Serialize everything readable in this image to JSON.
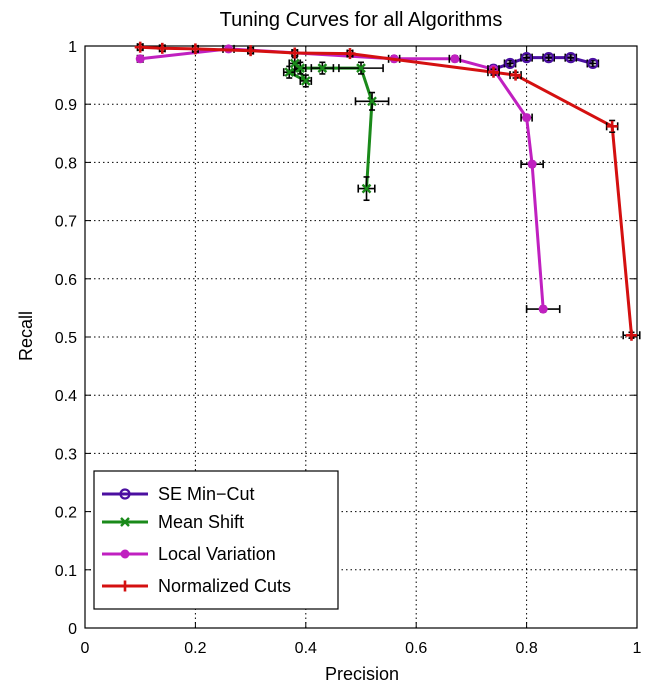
{
  "chart_data": {
    "type": "line",
    "title": "Tuning Curves for all Algorithms",
    "xlabel": "Precision",
    "ylabel": "Recall",
    "xlim": [
      0,
      1
    ],
    "ylim": [
      0,
      1
    ],
    "xticks": [
      "0",
      "0.2",
      "0.4",
      "0.6",
      "0.8",
      "1"
    ],
    "yticks": [
      "0",
      "0.1",
      "0.2",
      "0.3",
      "0.4",
      "0.5",
      "0.6",
      "0.7",
      "0.8",
      "0.9",
      "1"
    ],
    "grid": true,
    "legend_position": "bottom-left",
    "series": [
      {
        "name": "SE Min−Cut",
        "color": "#4b0fa0",
        "marker": "circle-open",
        "x": [
          0.74,
          0.77,
          0.8,
          0.84,
          0.88,
          0.92
        ],
        "y": [
          0.96,
          0.97,
          0.98,
          0.98,
          0.98,
          0.97
        ],
        "xerr": [
          0.01,
          0.01,
          0.01,
          0.01,
          0.01,
          0.01
        ],
        "yerr": [
          0.005,
          0.005,
          0.005,
          0.005,
          0.005,
          0.005
        ]
      },
      {
        "name": "Mean Shift",
        "color": "#1a8a1a",
        "marker": "x",
        "x": [
          0.51,
          0.52,
          0.5,
          0.43,
          0.39,
          0.37,
          0.4,
          0.38
        ],
        "y": [
          0.755,
          0.905,
          0.962,
          0.962,
          0.962,
          0.955,
          0.94,
          0.97
        ],
        "xerr": [
          0.015,
          0.03,
          0.04,
          0.02,
          0.01,
          0.01,
          0.01,
          0.01
        ],
        "yerr": [
          0.02,
          0.015,
          0.01,
          0.01,
          0.01,
          0.01,
          0.01,
          0.01
        ]
      },
      {
        "name": "Local Variation",
        "color": "#c020c0",
        "marker": "dot",
        "x": [
          0.83,
          0.81,
          0.8,
          0.74,
          0.67,
          0.56,
          0.26,
          0.1
        ],
        "y": [
          0.548,
          0.797,
          0.877,
          0.96,
          0.978,
          0.978,
          0.995,
          0.978
        ],
        "xerr": [
          0.03,
          0.02,
          0.01,
          0.01,
          0.01,
          0.01,
          0.01,
          0.005
        ],
        "yerr": [
          0.005,
          0.005,
          0.005,
          0.005,
          0.005,
          0.005,
          0.005,
          0.005
        ]
      },
      {
        "name": "Normalized Cuts",
        "color": "#d41010",
        "marker": "plus",
        "x": [
          0.1,
          0.14,
          0.2,
          0.3,
          0.38,
          0.48,
          0.74,
          0.78,
          0.955,
          0.99
        ],
        "y": [
          0.998,
          0.996,
          0.995,
          0.992,
          0.988,
          0.987,
          0.955,
          0.95,
          0.862,
          0.503
        ],
        "xerr": [
          0.005,
          0.005,
          0.005,
          0.005,
          0.005,
          0.005,
          0.01,
          0.01,
          0.01,
          0.015
        ],
        "yerr": [
          0.005,
          0.005,
          0.005,
          0.005,
          0.005,
          0.005,
          0.005,
          0.005,
          0.01,
          0.005
        ]
      }
    ]
  }
}
